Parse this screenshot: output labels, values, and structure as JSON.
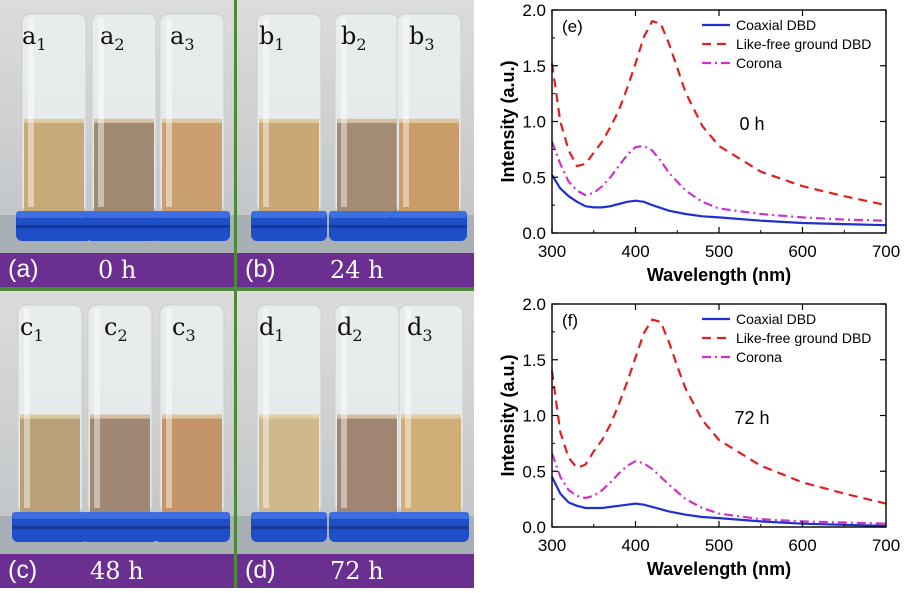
{
  "panels": [
    {
      "id": "(a)",
      "time": "0 h",
      "tubes": [
        {
          "letter": "a",
          "index": "1"
        },
        {
          "letter": "a",
          "index": "2"
        },
        {
          "letter": "a",
          "index": "3"
        }
      ]
    },
    {
      "id": "(b)",
      "time": "24 h",
      "tubes": [
        {
          "letter": "b",
          "index": "1"
        },
        {
          "letter": "b",
          "index": "2"
        },
        {
          "letter": "b",
          "index": "3"
        }
      ]
    },
    {
      "id": "(c)",
      "time": "48 h",
      "tubes": [
        {
          "letter": "c",
          "index": "1"
        },
        {
          "letter": "c",
          "index": "2"
        },
        {
          "letter": "c",
          "index": "3"
        }
      ]
    },
    {
      "id": "(d)",
      "time": "72 h",
      "tubes": [
        {
          "letter": "d",
          "index": "1"
        },
        {
          "letter": "d",
          "index": "2"
        },
        {
          "letter": "d",
          "index": "3"
        }
      ]
    }
  ],
  "chart_data": [
    {
      "type": "line",
      "panel_label": "(e)",
      "annotation": "0 h",
      "xlabel": "Wavelength (nm)",
      "ylabel": "Intensity (a.u.)",
      "xlim": [
        300,
        700
      ],
      "ylim": [
        0,
        2.0
      ],
      "xticks": [
        300,
        400,
        500,
        600,
        700
      ],
      "yticks": [
        0.0,
        0.5,
        1.0,
        1.5,
        2.0
      ],
      "ytick_labels": [
        "0.0",
        "0.5",
        "1.0",
        "1.5",
        "2.0"
      ],
      "series": [
        {
          "name": "Coaxial DBD",
          "color": "#1f2fd0",
          "dash": "solid",
          "x": [
            300,
            310,
            320,
            330,
            340,
            350,
            360,
            370,
            380,
            390,
            400,
            410,
            420,
            440,
            460,
            480,
            500,
            550,
            600,
            650,
            700
          ],
          "y": [
            0.52,
            0.4,
            0.33,
            0.28,
            0.24,
            0.23,
            0.23,
            0.24,
            0.26,
            0.28,
            0.29,
            0.28,
            0.25,
            0.2,
            0.17,
            0.15,
            0.14,
            0.11,
            0.09,
            0.08,
            0.07
          ]
        },
        {
          "name": "Like-free ground DBD",
          "color": "#e02020",
          "dash": "dashed",
          "x": [
            300,
            310,
            320,
            330,
            340,
            350,
            360,
            370,
            380,
            390,
            400,
            410,
            420,
            430,
            440,
            450,
            460,
            480,
            500,
            550,
            600,
            650,
            700
          ],
          "y": [
            1.52,
            1.0,
            0.74,
            0.6,
            0.62,
            0.72,
            0.82,
            0.95,
            1.1,
            1.3,
            1.52,
            1.76,
            1.9,
            1.88,
            1.7,
            1.48,
            1.26,
            0.96,
            0.78,
            0.55,
            0.42,
            0.33,
            0.25
          ]
        },
        {
          "name": "Corona",
          "color": "#cc33cc",
          "dash": "dashdot",
          "x": [
            300,
            310,
            320,
            330,
            340,
            350,
            360,
            370,
            380,
            390,
            400,
            410,
            420,
            430,
            440,
            460,
            480,
            500,
            550,
            600,
            650,
            700
          ],
          "y": [
            0.82,
            0.62,
            0.46,
            0.38,
            0.34,
            0.36,
            0.42,
            0.5,
            0.6,
            0.7,
            0.77,
            0.78,
            0.74,
            0.65,
            0.54,
            0.38,
            0.28,
            0.22,
            0.17,
            0.14,
            0.12,
            0.11
          ]
        }
      ]
    },
    {
      "type": "line",
      "panel_label": "(f)",
      "annotation": "72 h",
      "xlabel": "Wavelength (nm)",
      "ylabel": "Intensity (a.u.)",
      "xlim": [
        300,
        700
      ],
      "ylim": [
        0,
        2.0
      ],
      "xticks": [
        300,
        400,
        500,
        600,
        700
      ],
      "yticks": [
        0.0,
        0.5,
        1.0,
        1.5,
        2.0
      ],
      "ytick_labels": [
        "0.0",
        "0.5",
        "1.0",
        "1.5",
        "2.0"
      ],
      "series": [
        {
          "name": "Coaxial DBD",
          "color": "#1f2fd0",
          "dash": "solid",
          "x": [
            300,
            310,
            320,
            330,
            340,
            350,
            360,
            370,
            380,
            390,
            400,
            410,
            420,
            440,
            460,
            480,
            500,
            550,
            600,
            650,
            700
          ],
          "y": [
            0.45,
            0.3,
            0.22,
            0.19,
            0.17,
            0.17,
            0.17,
            0.18,
            0.19,
            0.2,
            0.21,
            0.2,
            0.18,
            0.14,
            0.11,
            0.09,
            0.08,
            0.05,
            0.03,
            0.02,
            0.01
          ]
        },
        {
          "name": "Like-free ground DBD",
          "color": "#e02020",
          "dash": "dashed",
          "x": [
            300,
            310,
            320,
            330,
            340,
            350,
            360,
            370,
            380,
            390,
            400,
            410,
            420,
            430,
            440,
            450,
            460,
            480,
            500,
            550,
            600,
            650,
            700
          ],
          "y": [
            1.4,
            0.85,
            0.62,
            0.53,
            0.56,
            0.68,
            0.78,
            0.92,
            1.1,
            1.3,
            1.52,
            1.74,
            1.86,
            1.84,
            1.66,
            1.44,
            1.24,
            0.96,
            0.78,
            0.55,
            0.4,
            0.3,
            0.21
          ]
        },
        {
          "name": "Corona",
          "color": "#cc33cc",
          "dash": "dashdot",
          "x": [
            300,
            310,
            320,
            330,
            340,
            350,
            360,
            370,
            380,
            390,
            400,
            410,
            420,
            430,
            440,
            460,
            480,
            500,
            550,
            600,
            650,
            700
          ],
          "y": [
            0.66,
            0.45,
            0.33,
            0.28,
            0.26,
            0.28,
            0.33,
            0.4,
            0.48,
            0.55,
            0.59,
            0.57,
            0.52,
            0.45,
            0.38,
            0.25,
            0.17,
            0.12,
            0.07,
            0.05,
            0.04,
            0.03
          ]
        }
      ]
    }
  ]
}
